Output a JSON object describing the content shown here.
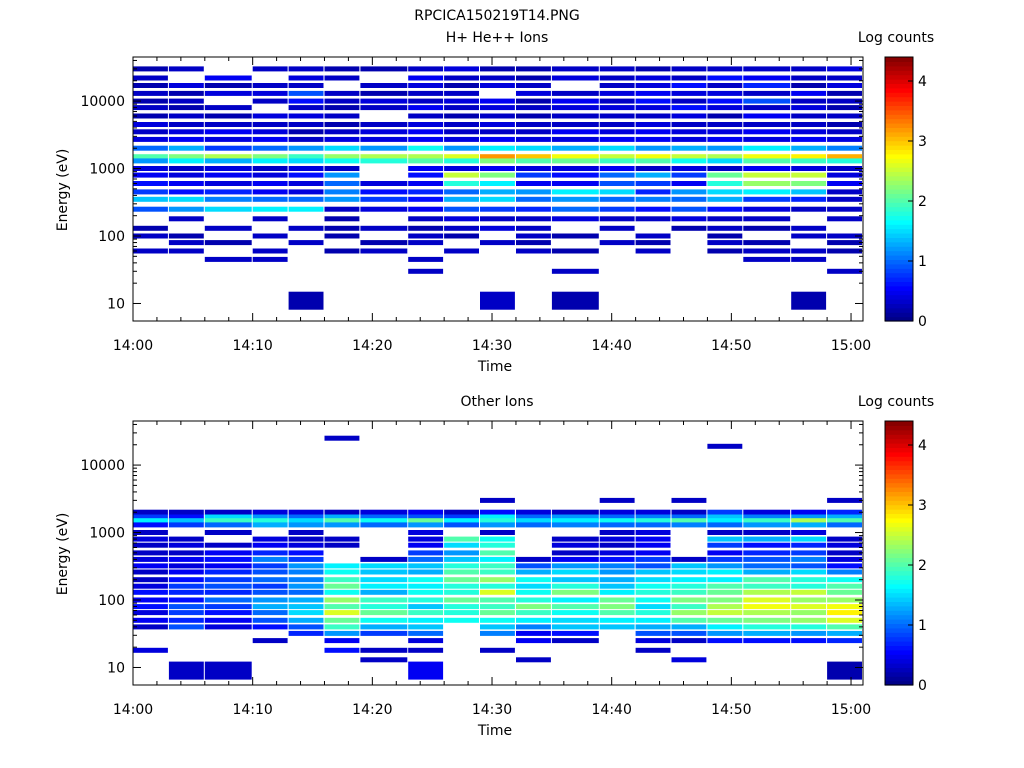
{
  "figure": {
    "title": "RPCICA150219T14.PNG"
  },
  "colorscale": {
    "stops": [
      "#00007f",
      "#0000ff",
      "#007fff",
      "#00ffff",
      "#7fff7f",
      "#ffff00",
      "#ff7f00",
      "#ff0000",
      "#7f0000"
    ],
    "range": [
      0,
      4.4
    ]
  },
  "chart_data": [
    {
      "type": "heatmap",
      "title": "H+ He++ Ions",
      "xlabel": "Time",
      "ylabel": "Energy (eV)",
      "colorbar_label": "Log counts",
      "colorbar_ticks": [
        "0",
        "1",
        "2",
        "3",
        "4"
      ],
      "x_ticks": [
        "14:00",
        "14:10",
        "14:20",
        "14:30",
        "14:40",
        "14:50",
        "15:00"
      ],
      "y_ticks": [
        "10",
        "100",
        "1000",
        "10000"
      ],
      "xlim": [
        "14:00",
        "15:01"
      ],
      "ylim": [
        5.5,
        45000
      ],
      "y_scale": "log",
      "time_bins": [
        "14:00",
        "14:03",
        "14:06",
        "14:10",
        "14:13",
        "14:16",
        "14:19",
        "14:23",
        "14:26",
        "14:29",
        "14:32",
        "14:35",
        "14:39",
        "14:42",
        "14:45",
        "14:48",
        "14:51",
        "14:55",
        "14:58"
      ],
      "energy_bins_eV": [
        30000,
        22000,
        17000,
        13000,
        10000,
        8000,
        6000,
        4500,
        3500,
        2700,
        2000,
        1500,
        1300,
        1000,
        800,
        600,
        450,
        350,
        250,
        180,
        130,
        100,
        80,
        60,
        45,
        30,
        11
      ],
      "log_counts": [
        [
          0.2,
          0.3,
          0,
          0.3,
          0.3,
          0.2,
          0.2,
          0.3,
          0.4,
          0.2,
          0.2,
          0.3,
          0.3,
          0.2,
          0.3,
          0.3,
          0.3,
          0.3,
          0.4
        ],
        [
          0.3,
          0,
          0.5,
          0,
          0.4,
          0.3,
          0,
          0.5,
          0.3,
          0.3,
          0.2,
          0.4,
          0.3,
          0.4,
          0.3,
          0.6,
          0.5,
          0.3,
          0.3
        ],
        [
          0.2,
          0.4,
          0.2,
          0.3,
          0.3,
          0,
          0.3,
          0.4,
          0.2,
          0.4,
          0.3,
          0,
          0.3,
          0.4,
          0.6,
          0.3,
          0.7,
          0.2,
          0.4
        ],
        [
          0.3,
          0.2,
          0.4,
          0.4,
          0.9,
          0.3,
          0.2,
          0.3,
          0.3,
          0,
          0.4,
          0.3,
          0.4,
          0.5,
          0.4,
          0.4,
          0.3,
          0.5,
          0.2
        ],
        [
          0.2,
          0.3,
          0,
          0.3,
          0.6,
          0.3,
          0.4,
          0.3,
          0.4,
          0.5,
          0.2,
          0.5,
          0.3,
          0.6,
          0.3,
          0.6,
          0.9,
          0.3,
          0.3
        ],
        [
          0.3,
          0.2,
          0.3,
          0,
          0.3,
          0.2,
          0.3,
          0.5,
          0.3,
          0.4,
          0.3,
          0.4,
          0.4,
          0.4,
          0.6,
          0.4,
          0.3,
          0.4,
          0.2
        ],
        [
          0.2,
          0.3,
          0.2,
          0.4,
          0.4,
          0.3,
          0,
          0.3,
          0.2,
          0.3,
          0.2,
          0.3,
          0.3,
          0.3,
          0.4,
          0.2,
          0.5,
          0.3,
          0.3
        ],
        [
          0.4,
          0.3,
          0.3,
          0.3,
          0.3,
          0.2,
          0.3,
          0.4,
          0.3,
          0.4,
          0.3,
          0.3,
          0.3,
          0.4,
          0.3,
          0.3,
          0.3,
          0.3,
          0.2
        ],
        [
          0.3,
          0.4,
          0.5,
          0.4,
          0.2,
          0.3,
          0.4,
          0.5,
          0.3,
          0.3,
          0.3,
          0.5,
          0.4,
          0.5,
          0.4,
          0.4,
          0.5,
          0.4,
          0.3
        ],
        [
          0.4,
          0.5,
          0.4,
          0.5,
          0.3,
          0.4,
          0.4,
          0.5,
          0.4,
          0.5,
          0.4,
          0.4,
          0.5,
          0.5,
          0.4,
          0.5,
          0.4,
          0.5,
          0.4
        ],
        [
          1.0,
          1.3,
          0.8,
          1.0,
          1.2,
          1.5,
          1.2,
          1.7,
          1.2,
          1.6,
          1.5,
          1.3,
          1.5,
          1.2,
          1.3,
          1.2,
          1.6,
          1.3,
          1.1
        ],
        [
          2.0,
          2.2,
          2.4,
          2.2,
          1.9,
          2.3,
          2.4,
          2.4,
          2.6,
          3.2,
          3.0,
          2.7,
          2.5,
          2.7,
          2.5,
          2.4,
          2.7,
          2.8,
          3.1
        ],
        [
          1.2,
          1.6,
          1.3,
          1.6,
          1.5,
          1.7,
          1.8,
          2.0,
          1.8,
          2.2,
          2.0,
          2.1,
          1.9,
          2.0,
          1.7,
          1.5,
          2.0,
          1.9,
          1.8
        ],
        [
          0.4,
          0.3,
          0.4,
          0.3,
          0.4,
          0.3,
          0,
          0.5,
          0.4,
          0.5,
          0.4,
          0.4,
          0.5,
          0.3,
          0.4,
          0.3,
          0.5,
          0.4,
          0.3
        ],
        [
          0.5,
          0.4,
          0.5,
          0.4,
          0.6,
          1.2,
          0,
          0.6,
          2.5,
          2.2,
          0.8,
          0.6,
          1.0,
          1.3,
          0.8,
          2.1,
          2.5,
          2.5,
          0.4
        ],
        [
          0.6,
          0.5,
          0.4,
          0.5,
          0.4,
          1.0,
          0.4,
          0.5,
          1.8,
          1.6,
          0.5,
          0.5,
          0.9,
          0.8,
          0.5,
          1.8,
          2.3,
          2.2,
          0.5
        ],
        [
          0.8,
          0.6,
          0.7,
          0.5,
          0.4,
          1.1,
          0.6,
          0.7,
          1.0,
          1.3,
          1.2,
          1.6,
          1.5,
          0.7,
          1.2,
          1.5,
          1.6,
          1.4,
          0.3
        ],
        [
          1.4,
          1.5,
          1.1,
          1.0,
          1.0,
          1.2,
          0.8,
          0.6,
          1.3,
          1.5,
          1.0,
          1.2,
          1.0,
          1.1,
          1.0,
          1.3,
          0.8,
          0.7,
          0.3
        ],
        [
          0.9,
          1.2,
          1.5,
          1.6,
          1.6,
          0.3,
          0.4,
          0.5,
          0.9,
          0.8,
          0.7,
          1.0,
          0.8,
          0.6,
          0.9,
          0.6,
          0.4,
          0.3,
          0.3
        ],
        [
          0,
          0.3,
          0,
          0.3,
          0,
          0.2,
          0,
          0.3,
          0.4,
          0.3,
          0.3,
          0.4,
          0.3,
          0.3,
          0.4,
          0.3,
          0.3,
          0,
          0.3
        ],
        [
          0.2,
          0,
          0.3,
          0,
          0.3,
          0.2,
          0.3,
          0.2,
          0.3,
          0.4,
          0.3,
          0,
          0.3,
          0,
          0.2,
          0.3,
          0.2,
          0.3,
          0
        ],
        [
          0.3,
          0.2,
          0,
          0.3,
          0,
          0.2,
          0,
          0.3,
          0.2,
          0,
          0.3,
          0.2,
          0,
          0.3,
          0,
          0.2,
          0,
          0.3,
          0.3
        ],
        [
          0,
          0.3,
          0.2,
          0,
          0.3,
          0,
          0.2,
          0.3,
          0,
          0.3,
          0.2,
          0,
          0.3,
          0.2,
          0,
          0.3,
          0.2,
          0,
          0.2
        ],
        [
          0.3,
          0.3,
          0,
          0.3,
          0,
          0.2,
          0.3,
          0,
          0.3,
          0,
          0.3,
          0.2,
          0,
          0.3,
          0,
          0.2,
          0.3,
          0.3,
          0.2
        ],
        [
          0,
          0,
          0.3,
          0.3,
          0,
          0,
          0,
          0.3,
          0,
          0,
          0,
          0,
          0,
          0,
          0,
          0,
          0.3,
          0.3,
          0
        ],
        [
          0,
          0,
          0,
          0,
          0,
          0,
          0,
          0.3,
          0,
          0,
          0,
          0.3,
          0,
          0,
          0,
          0,
          0,
          0,
          0.3
        ],
        [
          0,
          0,
          0,
          0,
          0.2,
          0,
          0,
          0,
          0,
          0.3,
          0,
          0.2,
          0,
          0,
          0,
          0,
          0,
          0.2,
          0
        ]
      ]
    },
    {
      "type": "heatmap",
      "title": "Other Ions",
      "xlabel": "Time",
      "ylabel": "Energy (eV)",
      "colorbar_label": "Log counts",
      "colorbar_ticks": [
        "0",
        "1",
        "2",
        "3",
        "4"
      ],
      "x_ticks": [
        "14:00",
        "14:10",
        "14:20",
        "14:30",
        "14:40",
        "14:50",
        "15:00"
      ],
      "y_ticks": [
        "10",
        "100",
        "1000",
        "10000"
      ],
      "xlim": [
        "14:00",
        "15:01"
      ],
      "ylim": [
        5.5,
        45000
      ],
      "y_scale": "log",
      "time_bins": [
        "14:00",
        "14:03",
        "14:06",
        "14:10",
        "14:13",
        "14:16",
        "14:19",
        "14:23",
        "14:26",
        "14:29",
        "14:32",
        "14:35",
        "14:39",
        "14:42",
        "14:45",
        "14:48",
        "14:51",
        "14:55",
        "14:58"
      ],
      "energy_bins_eV": [
        25000,
        19000,
        3000,
        2000,
        1700,
        1500,
        1300,
        1000,
        800,
        650,
        500,
        400,
        320,
        260,
        200,
        160,
        130,
        100,
        80,
        65,
        50,
        40,
        32,
        25,
        18,
        13,
        9
      ],
      "log_counts": [
        [
          0,
          0,
          0,
          0,
          0,
          0.3,
          0,
          0,
          0,
          0,
          0,
          0,
          0,
          0,
          0,
          0,
          0,
          0,
          0
        ],
        [
          0,
          0,
          0,
          0,
          0,
          0,
          0,
          0,
          0,
          0,
          0,
          0,
          0,
          0,
          0,
          0.3,
          0,
          0,
          0
        ],
        [
          0,
          0,
          0,
          0,
          0,
          0,
          0,
          0,
          0,
          0.3,
          0,
          0,
          0.3,
          0,
          0.3,
          0,
          0,
          0,
          0.3
        ],
        [
          0.3,
          0.3,
          0.3,
          0.4,
          0.4,
          0.3,
          0.4,
          0.5,
          0.3,
          0.6,
          0.4,
          0.3,
          0.4,
          0.4,
          0.3,
          0.8,
          0.4,
          0.5,
          0.7
        ],
        [
          0.8,
          0.6,
          1.5,
          1.2,
          1.0,
          1.3,
          1.0,
          0.9,
          0.8,
          1.6,
          1.0,
          1.2,
          1.0,
          1.1,
          1.0,
          1.4,
          1.1,
          1.2,
          1.3
        ],
        [
          1.6,
          1.4,
          1.9,
          1.8,
          1.5,
          2.0,
          1.7,
          2.1,
          1.6,
          1.8,
          1.5,
          1.6,
          1.7,
          1.8,
          2.0,
          1.6,
          1.9,
          2.4,
          2.0
        ],
        [
          0.6,
          0.8,
          1.0,
          1.3,
          1.2,
          1.2,
          1.0,
          1.2,
          0.9,
          1.2,
          1.0,
          1.1,
          1.0,
          1.0,
          1.1,
          1.0,
          1.2,
          1.3,
          1.0
        ],
        [
          0.3,
          0,
          0.3,
          0,
          0.3,
          0,
          0,
          0.4,
          0,
          0.3,
          0,
          0,
          0.3,
          0.4,
          0,
          0.3,
          0.3,
          0.4,
          0
        ],
        [
          0.4,
          0.3,
          0,
          0.4,
          0.3,
          0.3,
          0,
          0.4,
          2.0,
          1.7,
          0,
          0.3,
          0.4,
          0.5,
          0,
          1.4,
          1.3,
          1.5,
          0.3
        ],
        [
          0.3,
          0.4,
          0.3,
          0.5,
          0.4,
          0.3,
          0,
          0.5,
          1.5,
          1.8,
          0,
          0.4,
          0.3,
          0.5,
          0,
          0.8,
          0.6,
          0.7,
          0.4
        ],
        [
          0.3,
          0.3,
          0.5,
          0.7,
          0.6,
          0,
          0,
          0.8,
          1.2,
          2.0,
          0,
          0.3,
          0.4,
          0.5,
          0,
          0.5,
          0.7,
          0.8,
          0.3
        ],
        [
          0.4,
          0.5,
          0.6,
          1.1,
          0.8,
          0,
          0.3,
          1.0,
          1.4,
          1.6,
          0.3,
          0.5,
          0.6,
          0.8,
          0.3,
          0.8,
          0.9,
          1.1,
          0.4
        ],
        [
          0.5,
          0.4,
          0.5,
          0.8,
          1.2,
          1.6,
          1.5,
          1.4,
          1.8,
          1.9,
          0.9,
          1.2,
          1.1,
          0.9,
          1.4,
          1.2,
          1.0,
          0.9,
          0.6
        ],
        [
          0.3,
          0.5,
          0.7,
          0.9,
          1.1,
          1.7,
          1.4,
          1.3,
          2.0,
          1.9,
          1.3,
          1.5,
          1.2,
          1.4,
          1.5,
          1.6,
          1.3,
          1.5,
          1.1
        ],
        [
          0.3,
          0.6,
          0.8,
          1.0,
          1.1,
          1.9,
          1.5,
          1.7,
          2.1,
          2.3,
          1.7,
          1.4,
          1.3,
          1.5,
          1.6,
          1.6,
          2.0,
          1.8,
          1.7
        ],
        [
          0.4,
          0.8,
          0.9,
          0.8,
          1.2,
          2.1,
          1.6,
          1.6,
          1.8,
          1.8,
          1.5,
          1.8,
          1.4,
          1.7,
          1.8,
          2.0,
          1.9,
          1.8,
          2.0
        ],
        [
          0.6,
          0.7,
          0.7,
          0.9,
          1.0,
          1.7,
          1.3,
          1.7,
          1.8,
          2.6,
          1.7,
          2.2,
          1.6,
          1.8,
          1.9,
          2.1,
          2.4,
          2.5,
          2.1
        ],
        [
          0.5,
          0.6,
          1.0,
          1.2,
          1.3,
          2.3,
          1.9,
          1.8,
          2.1,
          2.0,
          1.8,
          1.6,
          2.1,
          1.7,
          2.2,
          2.2,
          2.6,
          2.3,
          2.3
        ],
        [
          0.6,
          0.9,
          0.8,
          1.3,
          1.4,
          2.0,
          1.8,
          1.4,
          1.8,
          1.9,
          2.2,
          2.0,
          2.2,
          1.5,
          1.9,
          2.4,
          2.7,
          2.6,
          2.7
        ],
        [
          0.4,
          0.8,
          0.6,
          1.0,
          1.5,
          2.6,
          2.1,
          1.9,
          1.8,
          2.1,
          1.9,
          1.7,
          2.0,
          1.8,
          2.3,
          2.5,
          2.4,
          2.3,
          2.8
        ],
        [
          0.5,
          0.7,
          0.5,
          0.9,
          1.3,
          2.1,
          1.7,
          1.6,
          1.7,
          1.7,
          1.6,
          1.5,
          1.6,
          1.6,
          2.0,
          2.1,
          2.2,
          2.3,
          2.6
        ],
        [
          0.3,
          0.9,
          0.4,
          0.6,
          0.9,
          1.9,
          1.3,
          1.4,
          0,
          1.4,
          1.1,
          1.4,
          1.4,
          1.3,
          1.3,
          1.6,
          1.8,
          1.8,
          2.0
        ],
        [
          0,
          0,
          0,
          0,
          0.7,
          1.2,
          0.8,
          1.0,
          0,
          1.1,
          0.5,
          0.6,
          0,
          0.9,
          0.9,
          1.2,
          1.3,
          1.2,
          1.3
        ],
        [
          0,
          0,
          0,
          0.3,
          0,
          0.5,
          0,
          0.4,
          0,
          0,
          0.5,
          0.3,
          0,
          0.4,
          0.3,
          0.6,
          0.6,
          0.6,
          0.7
        ],
        [
          0.4,
          0,
          0,
          0,
          0,
          0.6,
          0.3,
          0.3,
          0,
          0.3,
          0,
          0,
          0,
          0.3,
          0,
          0,
          0,
          0,
          0
        ],
        [
          0,
          0,
          0,
          0,
          0,
          0,
          0.3,
          0,
          0,
          0,
          0.3,
          0,
          0,
          0,
          0.4,
          0,
          0,
          0,
          0
        ],
        [
          0,
          0.3,
          0.3,
          0,
          0,
          0,
          0,
          0.5,
          0,
          0,
          0,
          0,
          0,
          0,
          0,
          0,
          0,
          0,
          0.2
        ]
      ]
    }
  ]
}
